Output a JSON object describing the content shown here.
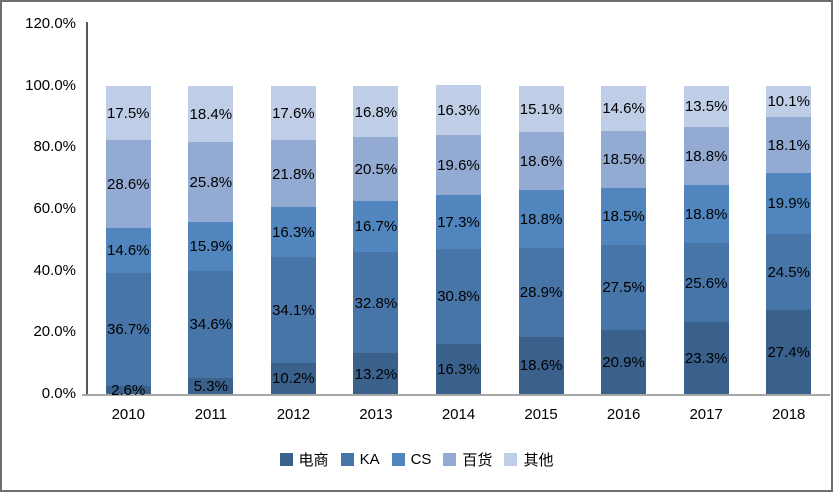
{
  "chart_data": {
    "type": "bar",
    "stacked": true,
    "stack_mode": "percent",
    "title": "",
    "xlabel": "",
    "ylabel": "",
    "ylim": [
      0,
      120
    ],
    "grid": false,
    "legend_position": "bottom",
    "categories": [
      "2010",
      "2011",
      "2012",
      "2013",
      "2014",
      "2015",
      "2016",
      "2017",
      "2018"
    ],
    "series": [
      {
        "name": "电商",
        "color": "#3A618C",
        "values": [
          2.6,
          5.3,
          10.2,
          13.2,
          16.3,
          18.6,
          20.9,
          23.3,
          27.4
        ],
        "labels": [
          "2.6%",
          "5.3%",
          "10.2%",
          "13.2%",
          "16.3%",
          "18.6%",
          "20.9%",
          "23.3%",
          "27.4%"
        ]
      },
      {
        "name": "KA",
        "color": "#4875A8",
        "values": [
          36.7,
          34.6,
          34.1,
          32.8,
          30.8,
          28.9,
          27.5,
          25.6,
          24.5
        ],
        "labels": [
          "36.7%",
          "34.6%",
          "34.1%",
          "32.8%",
          "30.8%",
          "28.9%",
          "27.5%",
          "25.6%",
          "24.5%"
        ]
      },
      {
        "name": "CS",
        "color": "#5086BD",
        "values": [
          14.6,
          15.9,
          16.3,
          16.7,
          17.3,
          18.8,
          18.5,
          18.8,
          19.9
        ],
        "labels": [
          "14.6%",
          "15.9%",
          "16.3%",
          "16.7%",
          "17.3%",
          "18.8%",
          "18.5%",
          "18.8%",
          "19.9%"
        ]
      },
      {
        "name": "百货",
        "color": "#93ABD2",
        "values": [
          28.6,
          25.8,
          21.8,
          20.5,
          19.6,
          18.6,
          18.5,
          18.8,
          18.1
        ],
        "labels": [
          "28.6%",
          "25.8%",
          "21.8%",
          "20.5%",
          "19.6%",
          "18.6%",
          "18.5%",
          "18.8%",
          "18.1%"
        ]
      },
      {
        "name": "其他",
        "color": "#BFCEE6",
        "values": [
          17.5,
          18.4,
          17.6,
          16.8,
          16.3,
          15.1,
          14.6,
          13.5,
          10.1
        ],
        "labels": [
          "17.5%",
          "18.4%",
          "17.6%",
          "16.8%",
          "16.3%",
          "15.1%",
          "14.6%",
          "13.5%",
          "10.1%"
        ]
      }
    ],
    "y_ticks": [
      {
        "label": "0.0%",
        "value": 0
      },
      {
        "label": "20.0%",
        "value": 20
      },
      {
        "label": "40.0%",
        "value": 40
      },
      {
        "label": "60.0%",
        "value": 60
      },
      {
        "label": "80.0%",
        "value": 80
      },
      {
        "label": "100.0%",
        "value": 100
      },
      {
        "label": "120.0%",
        "value": 120
      }
    ],
    "colors": {
      "axis_line": "#595959",
      "baseline": "#A6A6A6",
      "frame_border": "#6F6F6F",
      "label_text": "#000000"
    }
  }
}
